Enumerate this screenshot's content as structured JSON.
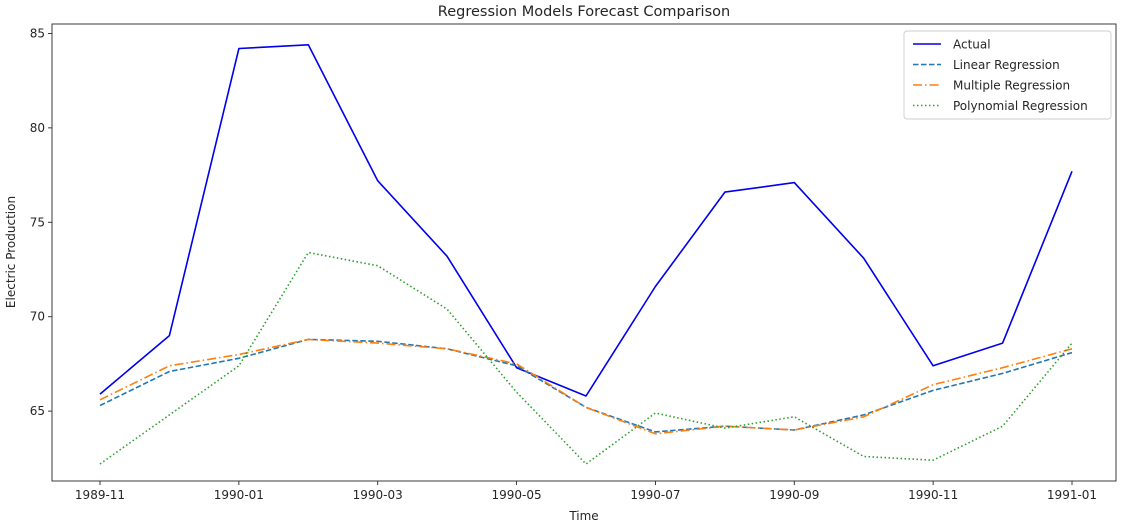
{
  "chart_data": {
    "type": "line",
    "title": "Regression Models Forecast Comparison",
    "xlabel": "Time",
    "ylabel": "Electric Production",
    "x": [
      "1989-11",
      "1989-12",
      "1990-01",
      "1990-02",
      "1990-03",
      "1990-04",
      "1990-05",
      "1990-06",
      "1990-07",
      "1990-08",
      "1990-09",
      "1990-10",
      "1990-11",
      "1990-12",
      "1991-01"
    ],
    "xticks": [
      "1989-11",
      "1990-01",
      "1990-03",
      "1990-05",
      "1990-07",
      "1990-09",
      "1990-11",
      "1991-01"
    ],
    "yticks": [
      65,
      70,
      75,
      80,
      85
    ],
    "ylim": [
      61.3,
      85.5
    ],
    "grid": false,
    "legend_position": "top-right",
    "series": [
      {
        "name": "Actual",
        "color": "#0000ee",
        "style": "solid",
        "values": [
          65.9,
          69.0,
          84.2,
          84.4,
          77.2,
          73.2,
          67.3,
          65.8,
          71.6,
          76.6,
          77.1,
          73.1,
          67.4,
          68.6,
          77.7
        ]
      },
      {
        "name": "Linear Regression",
        "color": "#1f77b4",
        "style": "dashed",
        "values": [
          65.3,
          67.1,
          67.8,
          68.8,
          68.7,
          68.3,
          67.4,
          65.2,
          63.9,
          64.2,
          64.0,
          64.8,
          66.1,
          67.0,
          68.1
        ]
      },
      {
        "name": "Multiple Regression",
        "color": "#ff7f0e",
        "style": "dashdot",
        "values": [
          65.6,
          67.4,
          68.0,
          68.8,
          68.6,
          68.3,
          67.5,
          65.2,
          63.8,
          64.2,
          64.0,
          64.7,
          66.4,
          67.3,
          68.3
        ]
      },
      {
        "name": "Polynomial Regression",
        "color": "#2ca02c",
        "style": "dotted",
        "values": [
          62.2,
          64.8,
          67.4,
          73.4,
          72.7,
          70.4,
          66.0,
          62.2,
          64.9,
          64.1,
          64.7,
          62.6,
          62.4,
          64.2,
          68.6
        ]
      }
    ]
  }
}
